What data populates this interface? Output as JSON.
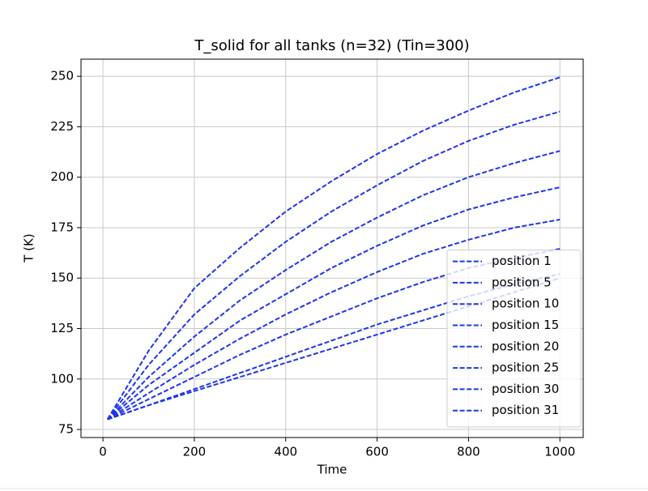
{
  "chart_data": {
    "type": "line",
    "title": "T_solid for all tanks (n=32) (Tin=300)",
    "x_label": "Time",
    "y_label": "T (K)",
    "x": [
      10,
      100,
      200,
      300,
      400,
      500,
      600,
      700,
      800,
      900,
      1000
    ],
    "series": [
      {
        "name": "position 1",
        "color": "#1f35ee",
        "values": [
          80,
          114,
          145,
          165,
          183,
          198,
          211.5,
          223,
          233,
          242,
          249.5
        ]
      },
      {
        "name": "position 5",
        "color": "#1f35ee",
        "values": [
          80,
          107,
          132,
          151,
          168,
          183,
          196,
          208,
          218,
          226,
          232.5
        ]
      },
      {
        "name": "position 10",
        "color": "#1f35ee",
        "values": [
          80,
          101,
          121,
          139,
          154,
          168,
          180,
          191,
          200,
          207,
          213
        ]
      },
      {
        "name": "position 15",
        "color": "#1f35ee",
        "values": [
          80,
          97,
          113,
          129,
          142,
          155,
          166,
          176,
          184,
          190,
          195
        ]
      },
      {
        "name": "position 20",
        "color": "#1f35ee",
        "values": [
          80,
          93,
          107,
          120,
          132,
          143,
          153,
          162,
          169,
          175,
          179
        ]
      },
      {
        "name": "position 25",
        "color": "#1f35ee",
        "values": [
          80,
          90,
          101,
          112,
          122,
          131,
          140,
          148,
          155,
          160,
          164.5
        ]
      },
      {
        "name": "position 30",
        "color": "#1f35ee",
        "values": [
          80,
          87,
          95,
          103,
          111,
          119,
          127,
          134,
          141,
          147,
          152
        ]
      },
      {
        "name": "position 31",
        "color": "#1f35ee",
        "values": [
          80,
          87,
          94,
          101,
          108,
          115,
          122,
          129,
          136,
          143,
          150
        ]
      }
    ],
    "xlim": [
      -48,
      1051
    ],
    "ylim": [
      71,
      258.5
    ],
    "xticks": [
      0,
      200,
      400,
      600,
      800,
      1000
    ],
    "yticks": [
      75,
      100,
      125,
      150,
      175,
      200,
      225,
      250
    ],
    "grid": true,
    "line_style": "dashed",
    "legend": "lower right"
  }
}
